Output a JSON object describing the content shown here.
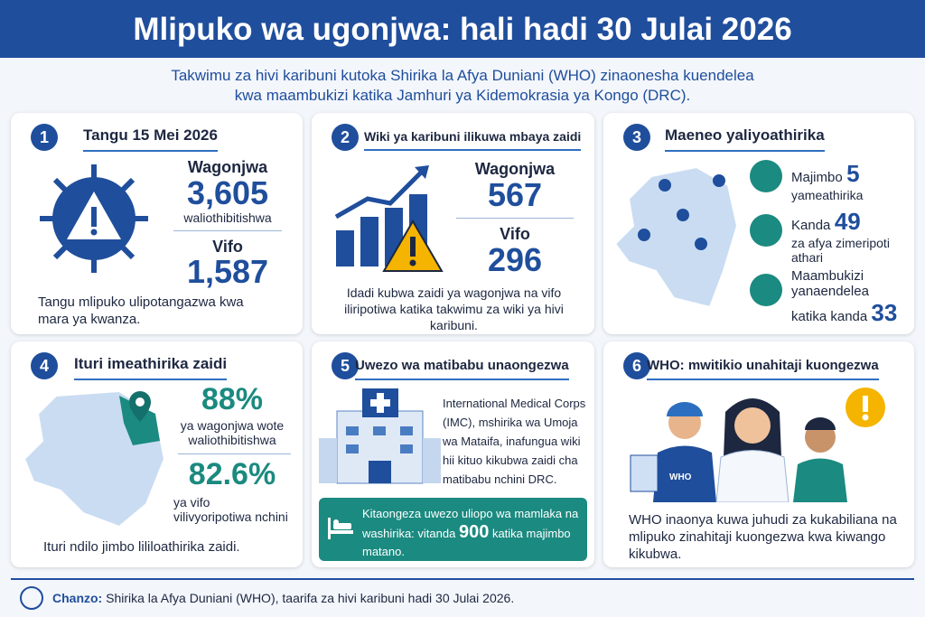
{
  "header": {
    "title": "Mlipuko wa ugonjwa: hali hadi 30 Julai 2026",
    "subtitle_lines": [
      "Takwimu za hivi karibuni kutoka Shirika la Afya Duniani (WHO) zinaonesha kuendelea",
      "kwa maambukizi katika Jamhuri ya Kidemokrasia ya Kongo (DRC)."
    ]
  },
  "cards": [
    {
      "number": "1",
      "title": "Tangu 15 Mei 2026",
      "cases_label": "Wagonjwa",
      "cases": "3,605",
      "cases_note": "waliothibitishwa",
      "deaths_label": "Vifo",
      "deaths": "1,587",
      "note": "Tangu mlipuko ulipotangazwa kwa mara ya kwanza."
    },
    {
      "number": "2",
      "title": "Wiki ya karibuni ilikuwa mbaya zaidi",
      "cases_label": "Wagonjwa",
      "cases": "567",
      "deaths_label": "Vifo",
      "deaths": "296",
      "note": "Idadi kubwa zaidi ya wagonjwa na vifo iliripotiwa katika takwimu za wiki ya hivi karibuni."
    },
    {
      "number": "3",
      "title": "Maeneo yaliyoathirika",
      "items": [
        {
          "label": "Majimbo",
          "value": "5",
          "text": "yameathirika"
        },
        {
          "label": "Kanda",
          "value": "49",
          "text": "za afya zimeripoti athari"
        },
        {
          "label": "Maambukizi yanaendelea katika kanda",
          "value": "33"
        }
      ]
    },
    {
      "number": "4",
      "title": "Ituri imeathirika zaidi",
      "cases_share": "88%",
      "cases_note": "ya wagonjwa wote waliothibitishwa",
      "deaths_share": "82.6%",
      "deaths_note": "ya vifo vilivyoripotiwa nchini",
      "note": "Ituri ndilo jimbo lililoathirika zaidi."
    },
    {
      "number": "5",
      "title": "Uwezo wa matibabu unaongezwa",
      "text": "International Medical Corps (IMC), mshirika wa Umoja wa Mataifa, inafungua wiki hii kituo kikubwa zaidi cha matibabu nchini DRC.",
      "box_before": "Kitaongeza uwezo uliopo wa mamlaka na washirika: vitanda",
      "box_value": "900",
      "box_after": "katika majimbo matano."
    },
    {
      "number": "6",
      "title": "WHO: mwitikio unahitaji kuongezwa",
      "vest_label": "WHO",
      "note": "WHO inaonya kuwa juhudi za kukabiliana na mlipuko zinahitaji kuongezwa kwa kiwango kikubwa."
    }
  ],
  "footer": {
    "label": "Chanzo:",
    "text": "Shirika la Afya Duniani (WHO), taarifa za hivi karibuni hadi 30 Julai 2026."
  }
}
